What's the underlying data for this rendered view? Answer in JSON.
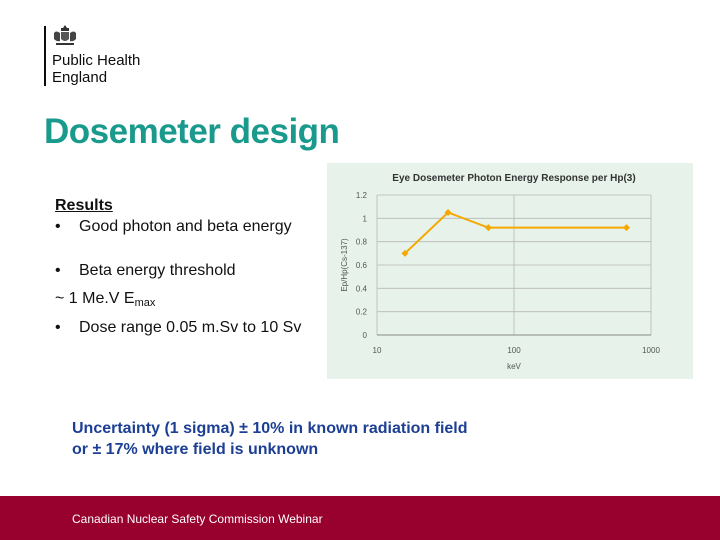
{
  "logo": {
    "emblem_icon": "royal-coat-of-arms-icon",
    "line1": "Public Health",
    "line2": "England"
  },
  "slide": {
    "title": "Dosemeter design",
    "results_heading": "Results",
    "bullet1": "Good photon and beta energy",
    "bullet2": "Beta energy threshold",
    "line_threshold_prefix": "~ 1 Me.V E",
    "line_threshold_sub": "max",
    "bullet3": "Dose range 0.05 m.Sv to 10 Sv",
    "bullet_symbol": "•",
    "uncertainty_line1": "Uncertainty (1 sigma) ± 10% in known radiation field",
    "uncertainty_line2": "or ± 17% where field is unknown",
    "footer": "Canadian Nuclear Safety Commission Webinar"
  },
  "colors": {
    "title": "#1a9a8c",
    "uncertainty": "#1c3f94",
    "footer_bg": "#98002e",
    "series": "#f5a800",
    "chart_bg": "#e6f2ea"
  },
  "chart_data": {
    "type": "line",
    "title": "Eye Dosemeter Photon Energy Response per Hp(3)",
    "xlabel": "keV",
    "ylabel": "Ep/Hp(Cs-137)",
    "x_scale": "log",
    "xlim": [
      10,
      1000
    ],
    "ylim": [
      0,
      1.2
    ],
    "x_ticks": [
      10,
      100,
      1000
    ],
    "x_tick_labels": [
      "10",
      "100",
      "1000"
    ],
    "y_ticks": [
      0,
      0.2,
      0.4,
      0.6,
      0.8,
      1,
      1.2
    ],
    "y_tick_labels": [
      "0",
      "0.2",
      "0.4",
      "0.6",
      "0.8",
      "1",
      "1.2"
    ],
    "grid": true,
    "series": [
      {
        "x": [
          16,
          33,
          65,
          662
        ],
        "y": [
          0.7,
          1.05,
          0.92,
          0.92
        ]
      }
    ]
  }
}
